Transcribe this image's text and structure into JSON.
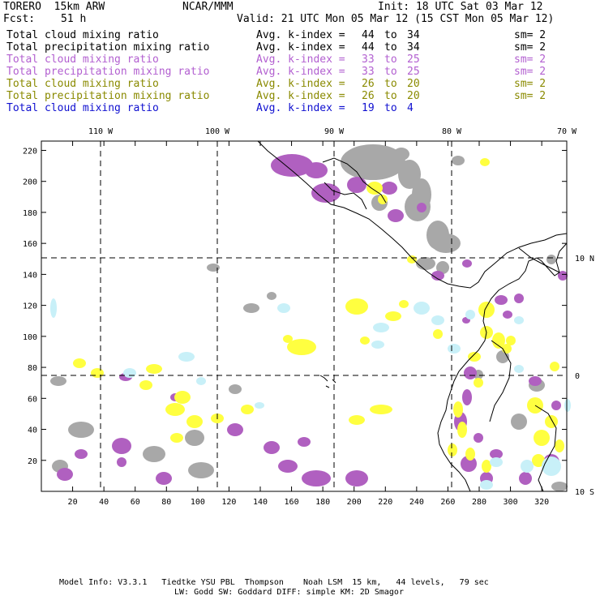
{
  "header": {
    "model": "TORERO  15km ARW",
    "org": "NCAR/MMM",
    "init": "Init: 18 UTC Sat 03 Mar 12",
    "fcst_label": "Fcst:",
    "fcst_value": "51 h",
    "valid": "Valid: 21 UTC Mon 05 Mar 12 (15 CST Mon 05 Mar 12)"
  },
  "fields": [
    {
      "name": "Total cloud mixing ratio",
      "kindex": "Avg. k-index = ",
      "hi": "44",
      "to": "to",
      "lo": "34",
      "sm": "sm= 2",
      "color": "#000000"
    },
    {
      "name": "Total precipitation mixing ratio",
      "kindex": "Avg. k-index = ",
      "hi": "44",
      "to": "to",
      "lo": "34",
      "sm": "sm= 2",
      "color": "#000000"
    },
    {
      "name": "Total cloud mixing ratio",
      "kindex": "Avg. k-index = ",
      "hi": "33",
      "to": "to",
      "lo": "25",
      "sm": "sm= 2",
      "color": "#b25fd0"
    },
    {
      "name": "Total precipitation mixing ratio",
      "kindex": "Avg. k-index = ",
      "hi": "33",
      "to": "to",
      "lo": "25",
      "sm": "sm= 2",
      "color": "#b25fd0"
    },
    {
      "name": "Total cloud mixing ratio",
      "kindex": "Avg. k-index = ",
      "hi": "26",
      "to": "to",
      "lo": "20",
      "sm": "sm= 2",
      "color": "#8a8a00"
    },
    {
      "name": "Total precipitation mixing ratio",
      "kindex": "Avg. k-index = ",
      "hi": "26",
      "to": "to",
      "lo": "20",
      "sm": "sm= 2",
      "color": "#8a8a00"
    },
    {
      "name": "Total cloud mixing ratio",
      "kindex": "Avg. k-index = ",
      "hi": "19",
      "to": "to",
      "lo": "4",
      "sm": "",
      "color": "#1010d0"
    }
  ],
  "map": {
    "lon_labels": [
      "110 W",
      "100 W",
      "90 W",
      "80 W",
      "70 W"
    ],
    "lat_labels": [
      "10 N",
      "0",
      "10 S"
    ],
    "x_ticks": [
      "20",
      "40",
      "60",
      "80",
      "100",
      "120",
      "140",
      "160",
      "180",
      "200",
      "220",
      "240",
      "260",
      "280",
      "300",
      "320"
    ],
    "y_ticks": [
      "20",
      "40",
      "60",
      "80",
      "100",
      "120",
      "140",
      "160",
      "180",
      "200",
      "220"
    ],
    "x_range": [
      0,
      336
    ],
    "y_range": [
      0,
      226
    ]
  },
  "colors": {
    "gray": "#a8a8a8",
    "purple": "#b060c0",
    "yellow": "#ffff40",
    "cyan": "#c8f0f8"
  },
  "footer": {
    "line1": "Model Info: V3.3.1   Tiedtke YSU PBL  Thompson    Noah LSM  15 km,   44 levels,   79 sec",
    "line2": "LW: Godd SW: Goddard DIFF: simple KM: 2D Smagor"
  }
}
